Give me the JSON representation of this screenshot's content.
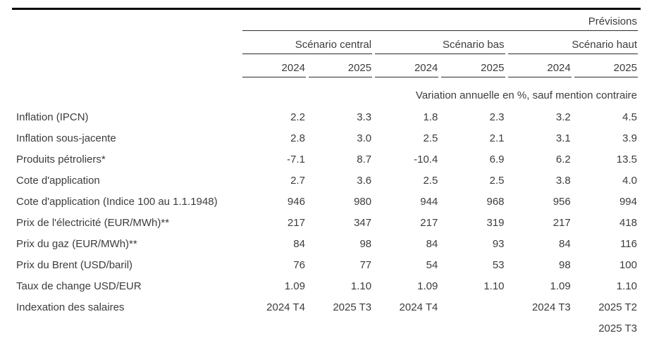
{
  "table": {
    "top_right_label": "Prévisions",
    "scenario_groups": [
      {
        "label": "Scénario central"
      },
      {
        "label": "Scénario bas"
      },
      {
        "label": "Scénario haut"
      }
    ],
    "year_headers": [
      "2024",
      "2025",
      "2024",
      "2025",
      "2024",
      "2025"
    ],
    "unit_note": "Variation annuelle en %, sauf mention contraire",
    "rows": [
      {
        "label": "Inflation (IPCN)",
        "values": [
          "2.2",
          "3.3",
          "1.8",
          "2.3",
          "3.2",
          "4.5"
        ]
      },
      {
        "label": "Inflation sous-jacente",
        "values": [
          "2.8",
          "3.0",
          "2.5",
          "2.1",
          "3.1",
          "3.9"
        ]
      },
      {
        "label": "Produits pétroliers*",
        "values": [
          "-7.1",
          "8.7",
          "-10.4",
          "6.9",
          "6.2",
          "13.5"
        ]
      },
      {
        "label": "Cote d'application",
        "values": [
          "2.7",
          "3.6",
          "2.5",
          "2.5",
          "3.8",
          "4.0"
        ]
      },
      {
        "label": "Cote d'application (Indice 100 au 1.1.1948)",
        "values": [
          "946",
          "980",
          "944",
          "968",
          "956",
          "994"
        ]
      },
      {
        "label": "Prix de l'électricité (EUR/MWh)**",
        "values": [
          "217",
          "347",
          "217",
          "319",
          "217",
          "418"
        ]
      },
      {
        "label": "Prix du gaz (EUR/MWh)**",
        "values": [
          "84",
          "98",
          "84",
          "93",
          "84",
          "116"
        ]
      },
      {
        "label": "Prix du Brent (USD/baril)",
        "values": [
          "76",
          "77",
          "54",
          "53",
          "98",
          "100"
        ]
      },
      {
        "label": "Taux de change USD/EUR",
        "values": [
          "1.09",
          "1.10",
          "1.09",
          "1.10",
          "1.09",
          "1.10"
        ]
      },
      {
        "label": "Indexation des salaires",
        "values": [
          "2024 T4",
          "2025 T3",
          "2024 T4",
          "",
          "2024 T3",
          "2025 T2"
        ]
      },
      {
        "label": "",
        "values": [
          "",
          "",
          "",
          "",
          "",
          "2025 T3"
        ]
      }
    ],
    "colors": {
      "text": "#3c3c3c",
      "rule": "#000000"
    }
  }
}
